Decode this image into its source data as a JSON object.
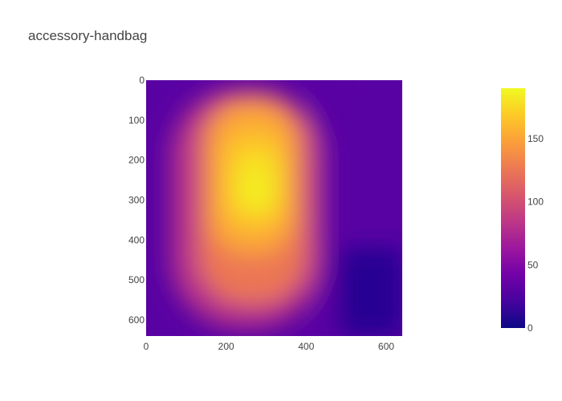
{
  "chart_data": {
    "type": "heatmap",
    "title": "accessory-handbag",
    "xlabel": "",
    "ylabel": "",
    "image_size": [
      640,
      640
    ],
    "xlim": [
      0,
      640
    ],
    "ylim": [
      640,
      0
    ],
    "x_ticks": [
      "0",
      "200",
      "400",
      "600"
    ],
    "y_ticks": [
      "0",
      "100",
      "200",
      "300",
      "400",
      "500",
      "600"
    ],
    "colorbar": {
      "range": [
        0,
        190
      ],
      "ticks": [
        "0",
        "50",
        "100",
        "150"
      ],
      "colorscale": [
        "#0d0887",
        "#46039f",
        "#7201a8",
        "#9c179e",
        "#bd3786",
        "#d8576b",
        "#ed7953",
        "#fb9f3a",
        "#fdca26",
        "#f0f921"
      ]
    },
    "intensity_regions": [
      {
        "x_range": [
          0,
          640
        ],
        "y_range": [
          0,
          640
        ],
        "approx_value": 30
      },
      {
        "x_range": [
          480,
          640
        ],
        "y_range": [
          420,
          640
        ],
        "approx_value": 10
      },
      {
        "x_range": [
          420,
          480
        ],
        "y_range": [
          0,
          640
        ],
        "approx_value": 30
      },
      {
        "x_range": [
          60,
          440
        ],
        "y_range": [
          20,
          620
        ],
        "approx_value": 80
      },
      {
        "x_range": [
          130,
          400
        ],
        "y_range": [
          40,
          560
        ],
        "approx_value": 125
      },
      {
        "x_range": [
          160,
          370
        ],
        "y_range": [
          60,
          440
        ],
        "approx_value": 150
      },
      {
        "x_range": [
          190,
          350
        ],
        "y_range": [
          120,
          380
        ],
        "approx_value": 165
      },
      {
        "x_range": [
          220,
          330
        ],
        "y_range": [
          180,
          340
        ],
        "approx_value": 180
      },
      {
        "x_range": [
          250,
          290
        ],
        "y_range": [
          250,
          300
        ],
        "approx_value": 190
      }
    ]
  }
}
